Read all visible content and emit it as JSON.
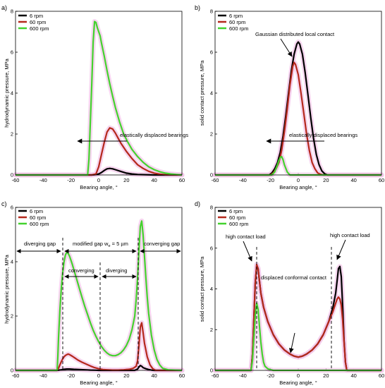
{
  "colors": {
    "s6": "#000000",
    "s60": "#b5281c",
    "s600": "#44d22e",
    "halo": "#f3c8ea"
  },
  "chart_data": [
    {
      "panel": "a)",
      "type": "line",
      "xlabel": "Bearing angle, °",
      "ylabel": "hydrodynamic pressure, MPa",
      "xlim": [
        -60,
        60
      ],
      "ylim": [
        0,
        8
      ],
      "xticks": [
        -60,
        -40,
        -20,
        0,
        20,
        40,
        60
      ],
      "yticks": [
        0,
        2,
        4,
        6,
        8
      ],
      "legend": [
        "6 rpm",
        "60 rpm",
        "600 rpm"
      ],
      "series": [
        {
          "name": "6 rpm",
          "color": "#000000",
          "x": [
            -60,
            -18,
            -5,
            -2,
            0,
            2,
            4,
            6,
            8,
            10,
            12,
            16,
            20,
            24,
            28,
            40,
            60
          ],
          "y": [
            0,
            0,
            0,
            0.02,
            0.05,
            0.12,
            0.22,
            0.3,
            0.32,
            0.3,
            0.26,
            0.17,
            0.09,
            0.05,
            0.02,
            0,
            0
          ]
        },
        {
          "name": "60 rpm",
          "color": "#b5281c",
          "x": [
            -60,
            -18,
            -5,
            -2,
            0,
            2,
            4,
            6,
            8,
            10,
            12,
            14,
            16,
            20,
            24,
            28,
            32,
            36,
            40,
            44,
            48,
            60
          ],
          "y": [
            0,
            0,
            0,
            0.05,
            0.4,
            1.0,
            1.6,
            2.1,
            2.3,
            2.25,
            2.05,
            1.8,
            1.55,
            1.15,
            0.8,
            0.5,
            0.32,
            0.18,
            0.09,
            0.04,
            0.01,
            0
          ]
        },
        {
          "name": "600 rpm",
          "color": "#44d22e",
          "x": [
            -60,
            -20,
            -8,
            -7,
            -5,
            -4,
            -3,
            -2,
            -1,
            0,
            1,
            2,
            4,
            6,
            8,
            10,
            12,
            15,
            18,
            21,
            24,
            28,
            32,
            36,
            40,
            44,
            48,
            52,
            56,
            60
          ],
          "y": [
            0,
            0,
            0,
            0.8,
            4.5,
            6.5,
            7.5,
            7.45,
            7.2,
            7.0,
            6.8,
            6.45,
            5.8,
            5.1,
            4.45,
            3.85,
            3.3,
            2.6,
            2.0,
            1.6,
            1.25,
            0.9,
            0.62,
            0.4,
            0.26,
            0.16,
            0.09,
            0.05,
            0.02,
            0
          ]
        }
      ],
      "annotations": [
        "elastically displaced bearings"
      ]
    },
    {
      "panel": "b)",
      "type": "line",
      "xlabel": "Bearing angle, °",
      "ylabel": "solid contact pressure, MPa",
      "xlim": [
        -60,
        60
      ],
      "ylim": [
        0,
        8
      ],
      "xticks": [
        -60,
        -40,
        -20,
        0,
        20,
        40,
        60
      ],
      "yticks": [
        0,
        2,
        4,
        6,
        8
      ],
      "legend": [
        "6 rpm",
        "60 rpm",
        "600 rpm"
      ],
      "series": [
        {
          "name": "6 rpm",
          "color": "#000000",
          "x": [
            -60,
            -21,
            -19,
            -17,
            -15,
            -13,
            -11,
            -9,
            -7,
            -5,
            -3,
            -1,
            0,
            1,
            3,
            5,
            7,
            9,
            11,
            13,
            15,
            17,
            19,
            21,
            60
          ],
          "y": [
            0,
            0,
            0.1,
            0.3,
            0.6,
            1.1,
            1.9,
            2.9,
            4.0,
            5.1,
            5.9,
            6.4,
            6.5,
            6.4,
            5.9,
            5.0,
            3.9,
            2.8,
            1.8,
            1.0,
            0.5,
            0.2,
            0.06,
            0,
            0
          ]
        },
        {
          "name": "60 rpm",
          "color": "#b5281c",
          "x": [
            -60,
            -20,
            -18,
            -16,
            -14,
            -12,
            -10,
            -8,
            -6,
            -4,
            -3,
            -2,
            0,
            2,
            4,
            6,
            8,
            10,
            12,
            14,
            16,
            18,
            60
          ],
          "y": [
            0,
            0,
            0.1,
            0.3,
            0.6,
            1.2,
            2.1,
            3.2,
            4.4,
            5.3,
            5.5,
            5.4,
            4.9,
            4.0,
            3.0,
            2.0,
            1.2,
            0.6,
            0.3,
            0.1,
            0.03,
            0,
            0
          ]
        },
        {
          "name": "600 rpm",
          "color": "#44d22e",
          "x": [
            -60,
            -19,
            -17,
            -15,
            -14,
            -13,
            -12,
            -11,
            -10,
            -8,
            -6,
            60
          ],
          "y": [
            0,
            0,
            0.15,
            0.5,
            0.7,
            0.85,
            0.9,
            0.75,
            0.5,
            0.15,
            0,
            0
          ]
        }
      ],
      "annotations": [
        "Gaussian distributed local contact",
        "elastically displaced bearings"
      ]
    },
    {
      "panel": "c)",
      "type": "line",
      "xlabel": "Bearing angle, °",
      "ylabel": "hydrodynamic pressure, MPa",
      "xlim": [
        -60,
        60
      ],
      "ylim": [
        0,
        6
      ],
      "xticks": [
        -60,
        -40,
        -20,
        0,
        20,
        40,
        60
      ],
      "yticks": [
        0,
        2,
        4,
        6
      ],
      "legend": [
        "6 rpm",
        "60 rpm",
        "600 rpm"
      ],
      "series": [
        {
          "name": "6 rpm",
          "color": "#000000",
          "x": [
            -60,
            -30,
            -27,
            -25,
            -23,
            -21,
            -18,
            -14,
            -10,
            -6,
            -2,
            0,
            26,
            28,
            29,
            30,
            31,
            32,
            34,
            36,
            38,
            40,
            60
          ],
          "y": [
            0,
            0,
            0.02,
            0.04,
            0.05,
            0.05,
            0.04,
            0.03,
            0.02,
            0.01,
            0.005,
            0,
            0,
            0.05,
            0.12,
            0.18,
            0.15,
            0.1,
            0.06,
            0.03,
            0.01,
            0,
            0
          ]
        },
        {
          "name": "60 rpm",
          "color": "#b5281c",
          "x": [
            -60,
            -30,
            -29,
            -28,
            -27,
            -26,
            -25,
            -24,
            -23,
            -22,
            -21,
            -19,
            -17,
            -15,
            -12,
            -9,
            -6,
            -3,
            0,
            3,
            6,
            10,
            14,
            18,
            22,
            25,
            27,
            28,
            29,
            30,
            31,
            32,
            33,
            35,
            37,
            39,
            41,
            60
          ],
          "y": [
            0,
            0,
            0.08,
            0.2,
            0.32,
            0.42,
            0.5,
            0.55,
            0.58,
            0.6,
            0.58,
            0.52,
            0.45,
            0.38,
            0.3,
            0.23,
            0.16,
            0.1,
            0.06,
            0.03,
            0.02,
            0.01,
            0.01,
            0.02,
            0.04,
            0.08,
            0.15,
            0.35,
            0.9,
            1.6,
            1.75,
            1.4,
            1.0,
            0.5,
            0.2,
            0.06,
            0,
            0
          ]
        },
        {
          "name": "600 rpm",
          "color": "#44d22e",
          "x": [
            -60,
            -30,
            -29.5,
            -29,
            -28,
            -27,
            -26,
            -25,
            -24,
            -23,
            -22,
            -21,
            -20,
            -19,
            -18,
            -16,
            -14,
            -12,
            -10,
            -8,
            -6,
            -4,
            -2,
            0,
            2,
            4,
            6,
            8,
            10,
            12,
            14,
            16,
            18,
            20,
            22,
            24,
            26,
            27,
            28,
            29,
            30,
            31,
            32,
            33,
            34,
            35,
            36,
            38,
            40,
            42,
            44,
            46,
            50,
            60
          ],
          "y": [
            0,
            0,
            0.5,
            1.2,
            2.2,
            3.0,
            3.6,
            4.0,
            4.25,
            4.35,
            4.3,
            4.2,
            4.05,
            3.9,
            3.72,
            3.38,
            3.02,
            2.68,
            2.35,
            2.05,
            1.75,
            1.48,
            1.25,
            1.05,
            0.88,
            0.74,
            0.64,
            0.57,
            0.54,
            0.54,
            0.58,
            0.65,
            0.76,
            0.92,
            1.15,
            1.5,
            2.0,
            2.6,
            3.4,
            4.4,
            5.3,
            5.5,
            5.0,
            4.2,
            3.4,
            2.7,
            2.1,
            1.3,
            0.75,
            0.4,
            0.2,
            0.08,
            0.02,
            0
          ]
        }
      ],
      "annotations": [
        "diverging gap",
        "modified gap w",
        "e",
        " = 5 µm",
        "converging gap",
        "converging",
        "diverging"
      ]
    },
    {
      "panel": "d)",
      "type": "line",
      "xlabel": "Bearing angle, °",
      "ylabel": "solid contact pressure, MPa",
      "xlim": [
        -60,
        60
      ],
      "ylim": [
        0,
        8
      ],
      "xticks": [
        -60,
        -40,
        -20,
        0,
        20,
        40,
        60
      ],
      "yticks": [
        0,
        2,
        4,
        6,
        8
      ],
      "legend": [
        "6 rpm",
        "60 rpm",
        "600 rpm"
      ],
      "series": [
        {
          "name": "6 rpm",
          "color": "#000000",
          "x": [
            -60,
            -34,
            -33,
            -32,
            -31,
            -30,
            -29,
            -28,
            -27,
            -25,
            -22,
            -18,
            -14,
            -10,
            -6,
            -3,
            0,
            3,
            6,
            10,
            14,
            18,
            22,
            25,
            27,
            28,
            29,
            30,
            31,
            32,
            33,
            34,
            35,
            60
          ],
          "y": [
            0,
            0,
            0.8,
            2.6,
            4.3,
            5.1,
            5.0,
            4.4,
            3.8,
            3.1,
            2.4,
            1.75,
            1.3,
            1.0,
            0.8,
            0.7,
            0.65,
            0.7,
            0.8,
            1.0,
            1.3,
            1.75,
            2.4,
            3.1,
            3.8,
            4.4,
            5.0,
            5.1,
            4.6,
            3.2,
            1.5,
            0.4,
            0,
            0
          ]
        },
        {
          "name": "60 rpm",
          "color": "#b5281c",
          "x": [
            -60,
            -34,
            -33,
            -32,
            -31,
            -30,
            -29,
            -28,
            -27,
            -25,
            -22,
            -18,
            -14,
            -10,
            -6,
            -3,
            0,
            3,
            6,
            10,
            14,
            18,
            22,
            25,
            27,
            28,
            29,
            30,
            31,
            32,
            33,
            34,
            35,
            60
          ],
          "y": [
            0,
            0,
            0.8,
            2.6,
            4.3,
            5.2,
            5.0,
            4.4,
            3.8,
            3.1,
            2.4,
            1.75,
            1.3,
            1.0,
            0.8,
            0.7,
            0.65,
            0.7,
            0.8,
            1.0,
            1.3,
            1.75,
            2.4,
            2.9,
            3.3,
            3.5,
            3.6,
            3.5,
            3.2,
            2.5,
            1.4,
            0.4,
            0,
            0
          ]
        },
        {
          "name": "600 rpm",
          "color": "#44d22e",
          "x": [
            -60,
            -34,
            -33,
            -32,
            -31,
            -30,
            -29,
            -28,
            -27,
            -26,
            -25,
            -24,
            -22,
            -20,
            -18,
            25,
            28,
            60
          ],
          "y": [
            0,
            0,
            0.5,
            1.6,
            2.7,
            3.3,
            3.0,
            2.2,
            1.4,
            0.8,
            0.4,
            0.2,
            0.08,
            0.03,
            0,
            0,
            0,
            0
          ]
        }
      ],
      "annotations": [
        "high contact load",
        "high contact load",
        "displaced conformal contact"
      ]
    }
  ]
}
